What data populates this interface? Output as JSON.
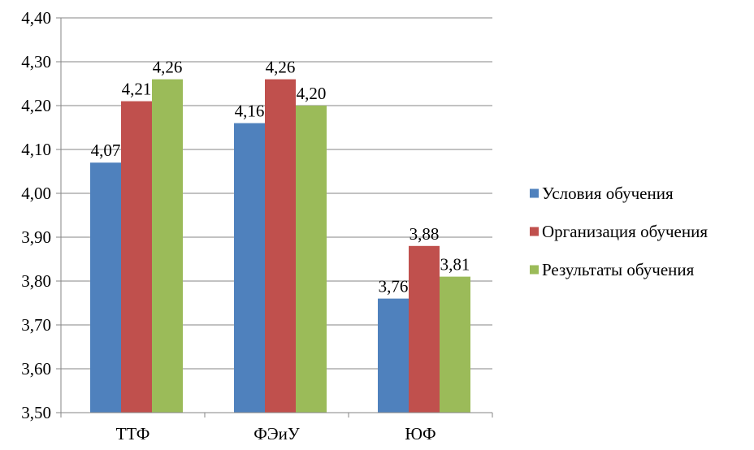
{
  "chart_data": {
    "type": "bar",
    "categories": [
      "ТТФ",
      "ФЭиУ",
      "ЮФ"
    ],
    "series": [
      {
        "name": "Условия обучения",
        "color": "#4F81BD",
        "values": [
          4.07,
          4.16,
          3.76
        ],
        "labels": [
          "4,07",
          "4,16",
          "3,76"
        ]
      },
      {
        "name": "Организация обучения",
        "color": "#C0504D",
        "values": [
          4.21,
          4.26,
          3.88
        ],
        "labels": [
          "4,21",
          "4,26",
          "3,88"
        ]
      },
      {
        "name": "Результаты обучения",
        "color": "#9BBB59",
        "values": [
          4.26,
          4.2,
          3.81
        ],
        "labels": [
          "4,26",
          "4,20",
          "3,81"
        ]
      }
    ],
    "ylim": [
      3.5,
      4.4
    ],
    "yticks": [
      3.5,
      3.6,
      3.7,
      3.8,
      3.9,
      4.0,
      4.1,
      4.2,
      4.3,
      4.4
    ],
    "ytick_labels": [
      "3,50",
      "3,60",
      "3,70",
      "3,80",
      "3,90",
      "4,00",
      "4,10",
      "4,20",
      "4,30",
      "4,40"
    ],
    "grid": true,
    "legend_position": "right",
    "title": "",
    "xlabel": "",
    "ylabel": ""
  }
}
